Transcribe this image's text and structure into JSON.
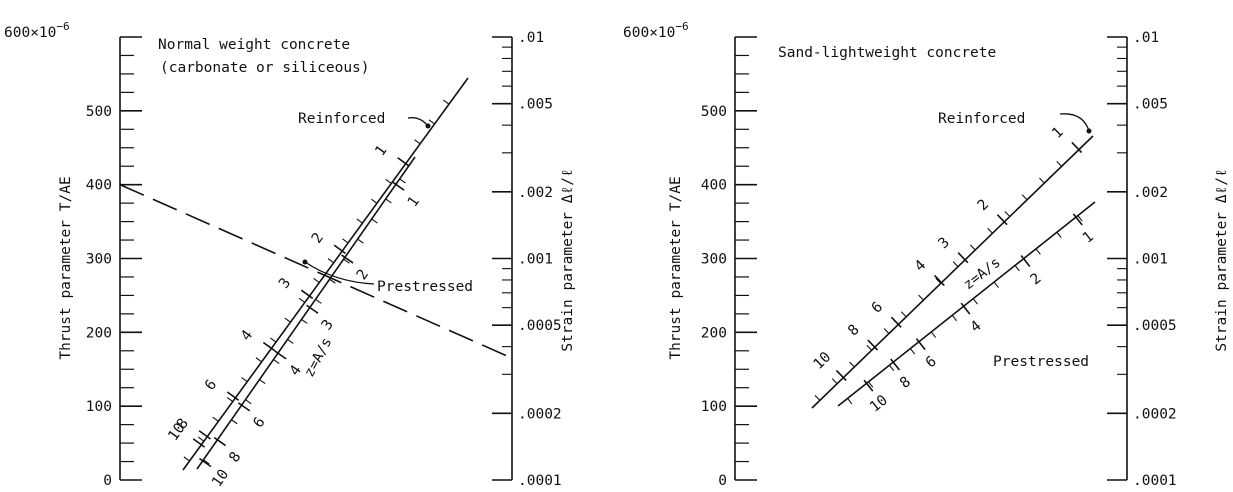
{
  "chart_data": [
    {
      "type": "line",
      "title": "Normal weight concrete",
      "subtitle": "(carbonate or siliceous)",
      "ylabel": "Thrust parameter T/AE",
      "ylabel_right": "Strain parameter Δℓ/ℓ",
      "ylim": [
        0,
        600
      ],
      "y_top_label": "600×10",
      "y_top_exponent": "−6",
      "left_ticks": [
        "0",
        "100",
        "200",
        "300",
        "400",
        "500"
      ],
      "right_ticks": [
        ".0001",
        ".0002",
        ".0005",
        ".001",
        ".002",
        ".005",
        ".01"
      ],
      "right_tick_values": [
        0.0001,
        0.0002,
        0.0005,
        0.001,
        0.002,
        0.005,
        0.01
      ],
      "z_label": "z=A/s",
      "series": [
        {
          "name": "Reinforced",
          "line_y": [
            105,
            540
          ],
          "z_scale": [
            {
              "z": "10",
              "y": 133
            },
            {
              "z": "8",
              "y": 142
            },
            {
              "z": "6",
              "y": 185
            },
            {
              "z": "4",
              "y": 240
            },
            {
              "z": "3",
              "y": 298
            },
            {
              "z": "2",
              "y": 348
            },
            {
              "z": "1",
              "y": 445
            }
          ]
        },
        {
          "name": "Prestressed",
          "line_y": [
            98,
            440
          ],
          "z_scale": [
            {
              "z": "10",
              "y": 107
            },
            {
              "z": "8",
              "y": 130
            },
            {
              "z": "6",
              "y": 168
            },
            {
              "z": "4",
              "y": 225
            },
            {
              "z": "3",
              "y": 275
            },
            {
              "z": "2",
              "y": 330
            },
            {
              "z": "1",
              "y": 410
            }
          ]
        },
        {
          "name": "",
          "style": "dashed",
          "points": [
            [
              0,
              400
            ],
            [
              1,
              165
            ]
          ]
        }
      ]
    },
    {
      "type": "line",
      "title": "Sand-lightweight concrete",
      "ylabel": "Thrust parameter T/AE",
      "ylabel_right": "Strain parameter Δℓ/ℓ",
      "ylim": [
        0,
        600
      ],
      "y_top_label": "600×10",
      "y_top_exponent": "−6",
      "left_ticks": [
        "0",
        "100",
        "200",
        "300",
        "400",
        "500"
      ],
      "right_ticks": [
        ".0001",
        ".0002",
        ".0005",
        ".001",
        ".002",
        ".005",
        ".01"
      ],
      "right_tick_values": [
        0.0001,
        0.0002,
        0.0005,
        0.001,
        0.002,
        0.005,
        0.01
      ],
      "z_label": "z=A/s",
      "series": [
        {
          "name": "Reinforced",
          "line_y": [
            110,
            468
          ],
          "z_scale": [
            {
              "z": "10",
              "y": 150
            },
            {
              "z": "8",
              "y": 190
            },
            {
              "z": "6",
              "y": 220
            },
            {
              "z": "4",
              "y": 275
            },
            {
              "z": "3",
              "y": 305
            },
            {
              "z": "2",
              "y": 355
            },
            {
              "z": "1",
              "y": 450
            }
          ]
        },
        {
          "name": "Prestressed",
          "line_y": [
            110,
            380
          ],
          "z_scale": [
            {
              "z": "10",
              "y": 140
            },
            {
              "z": "8",
              "y": 168
            },
            {
              "z": "6",
              "y": 195
            },
            {
              "z": "4",
              "y": 242
            },
            {
              "z": "2",
              "y": 305
            },
            {
              "z": "1",
              "y": 360
            }
          ]
        }
      ]
    }
  ]
}
